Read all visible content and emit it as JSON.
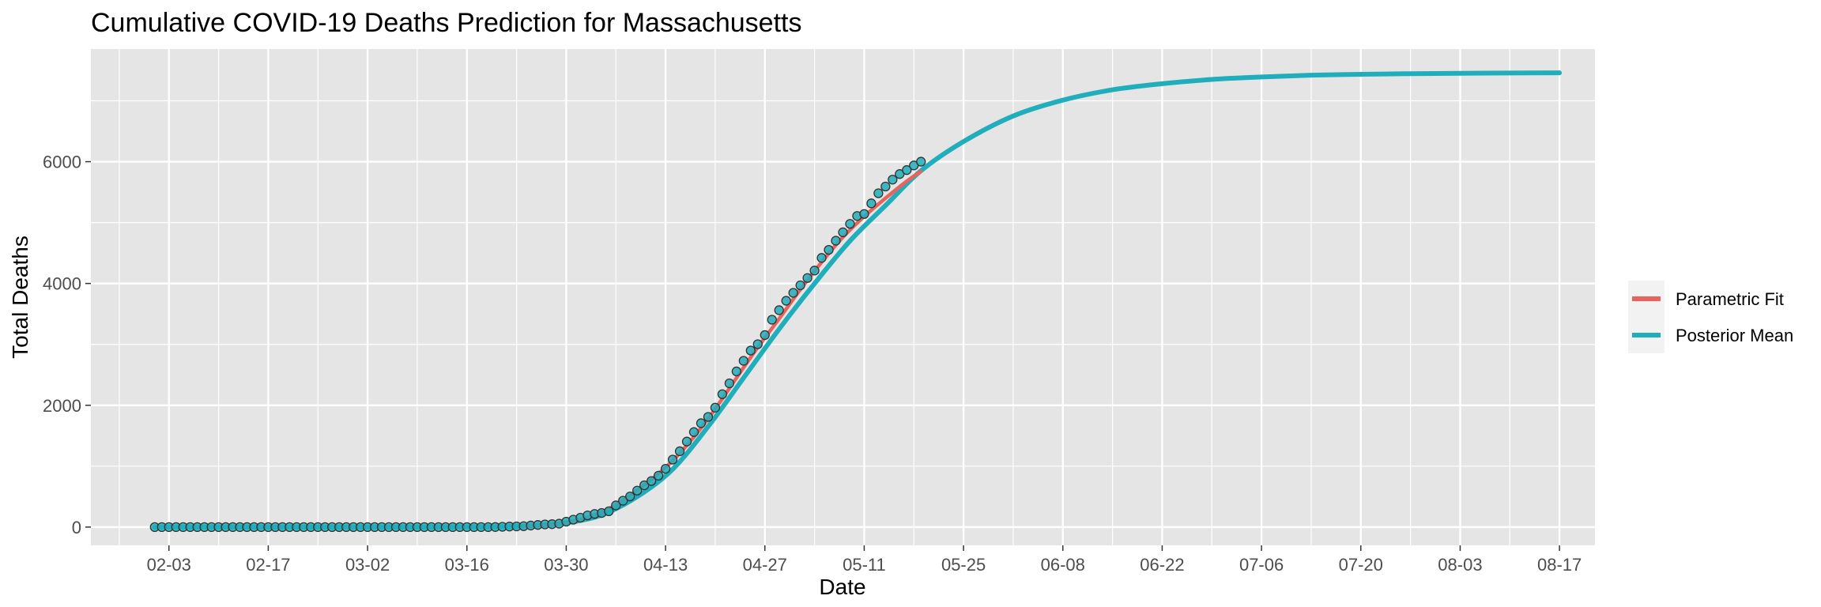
{
  "chart_data": {
    "type": "line",
    "title": "Cumulative COVID-19 Deaths Prediction for Massachusetts",
    "xlabel": "Date",
    "ylabel": "Total Deaths",
    "x_tick_labels": [
      "02-03",
      "02-17",
      "03-02",
      "03-16",
      "03-30",
      "04-13",
      "04-27",
      "05-11",
      "05-25",
      "06-08",
      "06-22",
      "07-06",
      "07-20",
      "08-03",
      "08-17"
    ],
    "y_ticks": [
      0,
      2000,
      4000,
      6000
    ],
    "y_tick_labels": [
      "0",
      "2000",
      "4000",
      "6000"
    ],
    "xlim": [
      "01-23",
      "08-22"
    ],
    "ylim": [
      -300,
      7850
    ],
    "grid": true,
    "legend_position": "right",
    "colors": {
      "panel_background": "#e5e5e5",
      "grid": "#ffffff",
      "parametric_fit": "#e8635c",
      "posterior_mean": "#20aebc",
      "observed_point_fill": "#20aebc",
      "observed_point_edge": "#333333"
    },
    "series": [
      {
        "name": "Parametric Fit",
        "kind": "line",
        "color": "#e8635c",
        "x": [
          "03-24",
          "03-27",
          "03-30",
          "04-02",
          "04-05",
          "04-08",
          "04-11",
          "04-14",
          "04-17",
          "04-20",
          "04-23",
          "04-26",
          "04-29",
          "05-02",
          "05-05",
          "05-08",
          "05-11",
          "05-14",
          "05-17",
          "05-19"
        ],
        "y": [
          10,
          30,
          70,
          160,
          300,
          520,
          780,
          1090,
          1480,
          1940,
          2450,
          2950,
          3420,
          3900,
          4350,
          4760,
          5100,
          5400,
          5680,
          5840
        ]
      },
      {
        "name": "Posterior Mean",
        "kind": "line",
        "color": "#20aebc",
        "x": [
          "02-01",
          "03-10",
          "03-20",
          "03-25",
          "03-30",
          "04-04",
          "04-09",
          "04-14",
          "04-19",
          "04-24",
          "04-29",
          "05-04",
          "05-09",
          "05-14",
          "05-19",
          "05-25",
          "06-01",
          "06-08",
          "06-15",
          "06-22",
          "06-29",
          "07-06",
          "07-13",
          "07-20",
          "07-27",
          "08-03",
          "08-10",
          "08-17"
        ],
        "y": [
          0,
          0,
          5,
          20,
          70,
          200,
          500,
          950,
          1650,
          2450,
          3250,
          4000,
          4700,
          5280,
          5850,
          6330,
          6750,
          7010,
          7180,
          7280,
          7350,
          7390,
          7420,
          7435,
          7445,
          7452,
          7455,
          7460
        ]
      },
      {
        "name": "Observed",
        "kind": "points",
        "x": [
          "02-01",
          "02-02",
          "02-03",
          "02-04",
          "02-05",
          "02-06",
          "02-07",
          "02-08",
          "02-09",
          "02-10",
          "02-11",
          "02-12",
          "02-13",
          "02-14",
          "02-15",
          "02-16",
          "02-17",
          "02-18",
          "02-19",
          "02-20",
          "02-21",
          "02-22",
          "02-23",
          "02-24",
          "02-25",
          "02-26",
          "02-27",
          "02-28",
          "02-29",
          "03-01",
          "03-02",
          "03-03",
          "03-04",
          "03-05",
          "03-06",
          "03-07",
          "03-08",
          "03-09",
          "03-10",
          "03-11",
          "03-12",
          "03-13",
          "03-14",
          "03-15",
          "03-16",
          "03-17",
          "03-18",
          "03-19",
          "03-20",
          "03-21",
          "03-22",
          "03-23",
          "03-24",
          "03-25",
          "03-26",
          "03-27",
          "03-28",
          "03-29",
          "03-30",
          "03-31",
          "04-01",
          "04-02",
          "04-03",
          "04-04",
          "04-05",
          "04-06",
          "04-07",
          "04-08",
          "04-09",
          "04-10",
          "04-11",
          "04-12",
          "04-13",
          "04-14",
          "04-15",
          "04-16",
          "04-17",
          "04-18",
          "04-19",
          "04-20",
          "04-21",
          "04-22",
          "04-23",
          "04-24",
          "04-25",
          "04-26",
          "04-27",
          "04-28",
          "04-29",
          "04-30",
          "05-01",
          "05-02",
          "05-03",
          "05-04",
          "05-05",
          "05-06",
          "05-07",
          "05-08",
          "05-09",
          "05-10",
          "05-11",
          "05-12",
          "05-13",
          "05-14",
          "05-15",
          "05-16",
          "05-17",
          "05-18",
          "05-19"
        ],
        "y": [
          0,
          0,
          0,
          0,
          0,
          0,
          0,
          0,
          0,
          0,
          0,
          0,
          0,
          0,
          0,
          0,
          0,
          0,
          0,
          0,
          0,
          0,
          0,
          0,
          0,
          0,
          0,
          0,
          0,
          0,
          0,
          0,
          0,
          0,
          0,
          0,
          0,
          0,
          0,
          0,
          0,
          0,
          0,
          0,
          0,
          0,
          0,
          0,
          1,
          5,
          9,
          11,
          15,
          25,
          35,
          44,
          48,
          56,
          89,
          122,
          154,
          192,
          216,
          231,
          260,
          356,
          433,
          503,
          599,
          686,
          756,
          844,
          957,
          1108,
          1245,
          1404,
          1560,
          1706,
          1809,
          1961,
          2182,
          2360,
          2556,
          2730,
          2899,
          3003,
          3153,
          3405,
          3562,
          3716,
          3846,
          3970,
          4090,
          4212,
          4420,
          4552,
          4702,
          4840,
          4979,
          5108,
          5141,
          5315,
          5482,
          5592,
          5705,
          5797,
          5862,
          5938,
          6000
        ]
      }
    ]
  }
}
